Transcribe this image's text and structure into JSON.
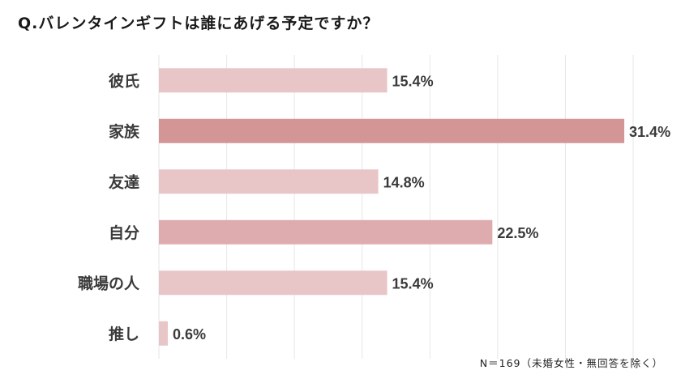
{
  "chart_data": {
    "type": "bar",
    "orientation": "horizontal",
    "title": "Q.バレンタインギフトは誰にあげる予定ですか？",
    "categories": [
      "彼氏",
      "家族",
      "友達",
      "自分",
      "職場の人",
      "推し"
    ],
    "values": [
      15.4,
      31.4,
      14.8,
      22.5,
      15.4,
      0.6
    ],
    "value_labels": [
      "15.4%",
      "31.4%",
      "14.8%",
      "22.5%",
      "15.4%",
      "0.6%"
    ],
    "xlim": [
      0,
      32
    ],
    "grid": true,
    "colors": {
      "default_bar": "#e8c6c7",
      "highlight_bar": "#d49597",
      "mid_bar": "#deacae",
      "gridline": "#e6e6e6",
      "label_text": "#3a3a3a"
    },
    "bar_color_keys": [
      "default_bar",
      "highlight_bar",
      "default_bar",
      "mid_bar",
      "default_bar",
      "default_bar"
    ],
    "note": "N＝169（未婚女性・無回答を除く）"
  }
}
